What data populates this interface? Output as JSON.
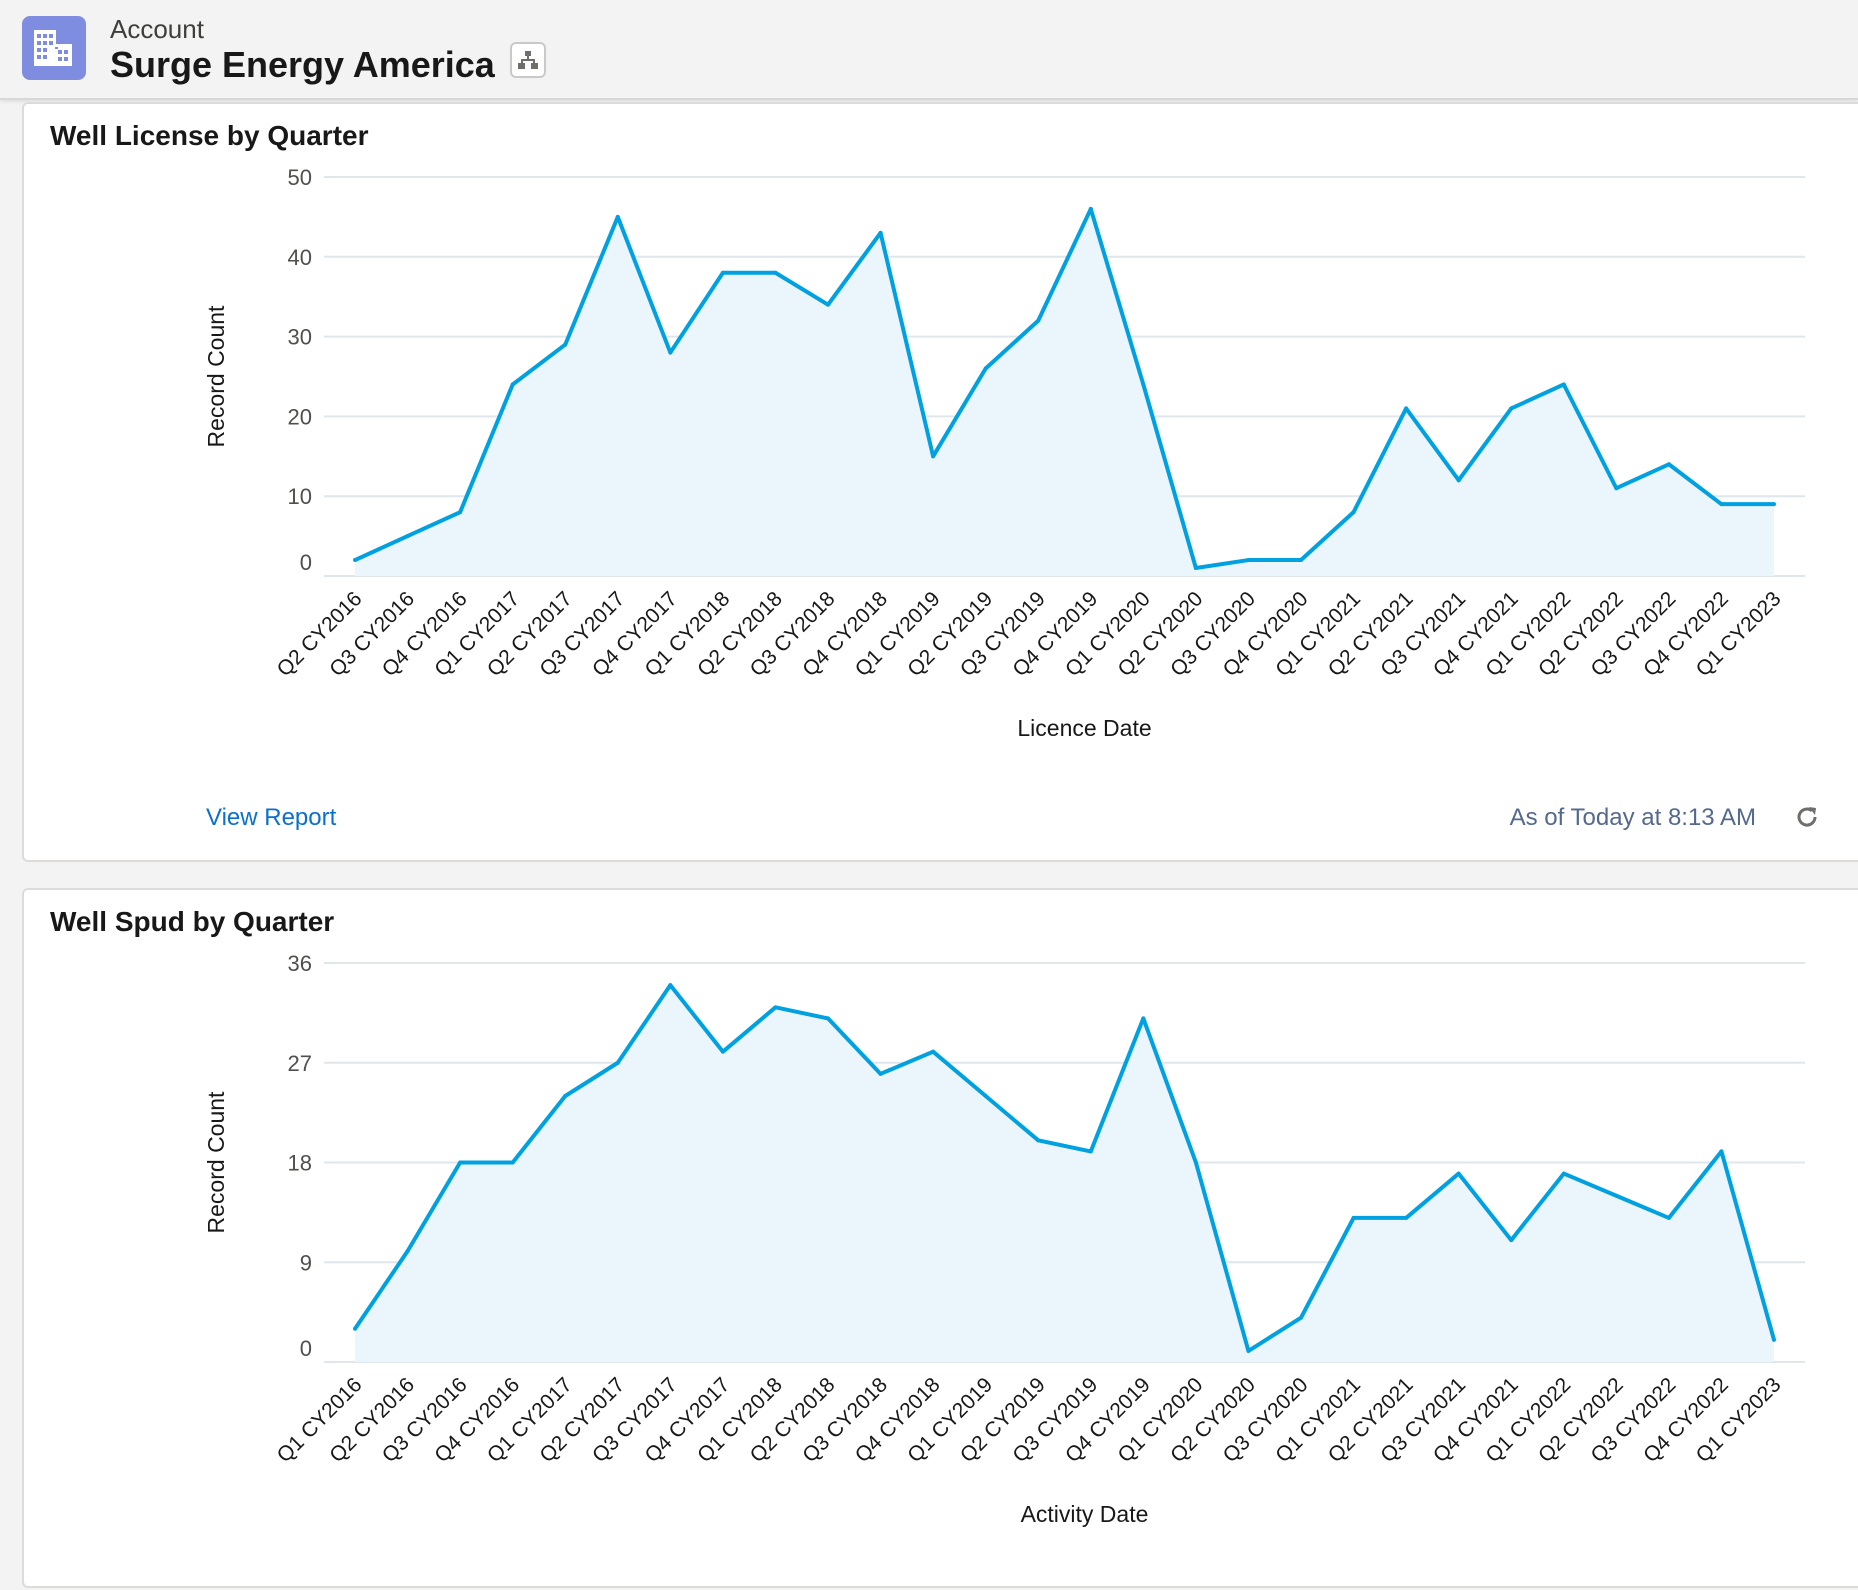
{
  "header": {
    "object_type": "Account",
    "account_name": "Surge Energy America",
    "icon": "building-icon",
    "hierarchy_button_icon": "hierarchy-icon"
  },
  "colors": {
    "line": "#00a1e0",
    "fill": "#eaf5fc",
    "grid": "#dfe6ec",
    "link": "#0b6fd0",
    "app_icon": "#7f8de1"
  },
  "cards": [
    {
      "title": "Well License by Quarter",
      "view_report": "View Report",
      "as_of": "As of Today at 8:13 AM",
      "refresh_icon": "refresh-icon"
    },
    {
      "title": "Well Spud by Quarter"
    }
  ],
  "chart_data": [
    {
      "type": "area",
      "title": "Well License by Quarter",
      "xlabel": "Licence Date",
      "ylabel": "Record Count",
      "ylim": [
        0,
        50
      ],
      "yticks": [
        0,
        10,
        20,
        30,
        40,
        50
      ],
      "grid": true,
      "categories": [
        "Q2 CY2016",
        "Q3 CY2016",
        "Q4 CY2016",
        "Q1 CY2017",
        "Q2 CY2017",
        "Q3 CY2017",
        "Q4 CY2017",
        "Q1 CY2018",
        "Q2 CY2018",
        "Q3 CY2018",
        "Q4 CY2018",
        "Q1 CY2019",
        "Q2 CY2019",
        "Q3 CY2019",
        "Q4 CY2019",
        "Q1 CY2020",
        "Q2 CY2020",
        "Q3 CY2020",
        "Q4 CY2020",
        "Q1 CY2021",
        "Q2 CY2021",
        "Q3 CY2021",
        "Q4 CY2021",
        "Q1 CY2022",
        "Q2 CY2022",
        "Q3 CY2022",
        "Q4 CY2022",
        "Q1 CY2023"
      ],
      "values": [
        2,
        5,
        8,
        24,
        29,
        45,
        28,
        38,
        38,
        34,
        43,
        15,
        26,
        32,
        46,
        24,
        1,
        2,
        2,
        8,
        21,
        12,
        21,
        24,
        11,
        14,
        9,
        9
      ]
    },
    {
      "type": "area",
      "title": "Well Spud by Quarter",
      "xlabel": "Activity Date",
      "ylabel": "Record Count",
      "ylim": [
        0,
        36
      ],
      "yticks": [
        0,
        9,
        18,
        27,
        36
      ],
      "grid": true,
      "categories": [
        "Q1 CY2016",
        "Q2 CY2016",
        "Q3 CY2016",
        "Q4 CY2016",
        "Q1 CY2017",
        "Q2 CY2017",
        "Q3 CY2017",
        "Q4 CY2017",
        "Q1 CY2018",
        "Q2 CY2018",
        "Q3 CY2018",
        "Q4 CY2018",
        "Q1 CY2019",
        "Q2 CY2019",
        "Q3 CY2019",
        "Q4 CY2019",
        "Q1 CY2020",
        "Q2 CY2020",
        "Q3 CY2020",
        "Q1 CY2021",
        "Q2 CY2021",
        "Q3 CY2021",
        "Q4 CY2021",
        "Q1 CY2022",
        "Q2 CY2022",
        "Q3 CY2022",
        "Q4 CY2022",
        "Q1 CY2023"
      ],
      "values": [
        3,
        10,
        18,
        18,
        24,
        27,
        34,
        28,
        32,
        31,
        26,
        28,
        24,
        20,
        19,
        31,
        18,
        1,
        4,
        13,
        13,
        17,
        11,
        17,
        15,
        13,
        19,
        2
      ]
    }
  ]
}
